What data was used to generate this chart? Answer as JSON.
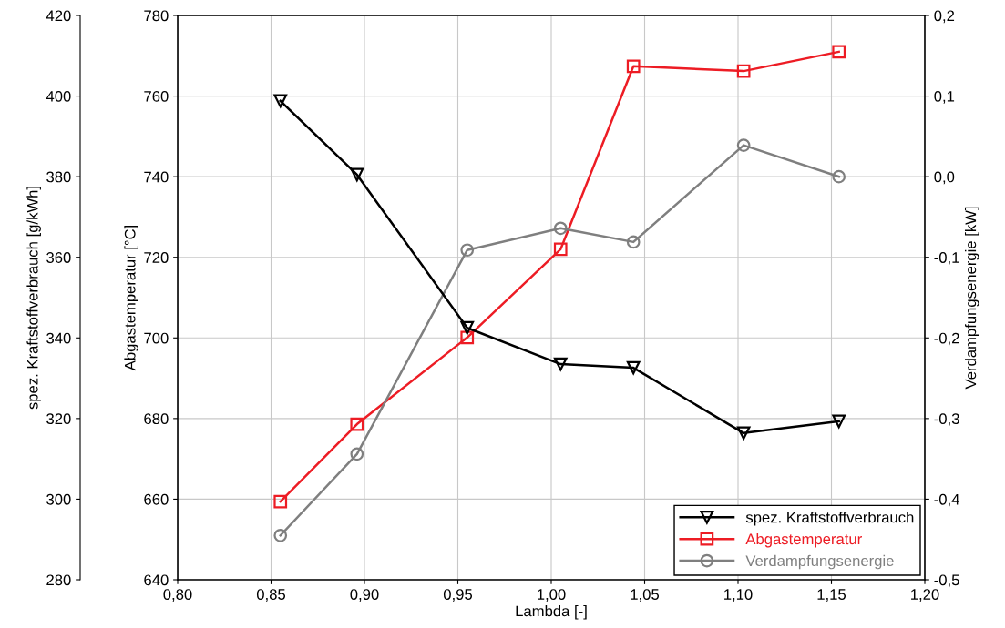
{
  "chart_data": {
    "type": "line",
    "xlabel": "Lambda [-]",
    "ylabel": "Abgastemperatur [°C]",
    "y2label": "Verdampfungsenergie [kW]",
    "y3label": "spez. Kraftstoffverbrauch [g/kWh]",
    "x": [
      0.855,
      0.896,
      0.955,
      1.005,
      1.044,
      1.103,
      1.154
    ],
    "series": [
      {
        "name": "spez. Kraftstoffverbrauch",
        "color": "#000000",
        "axis": "y3",
        "marker": "triangle",
        "values": [
          398.8,
          380.5,
          342.5,
          333.5,
          332.6,
          316.4,
          319.3
        ]
      },
      {
        "name": "Abgastemperatur",
        "color": "#ed1c24",
        "axis": "y",
        "marker": "square",
        "values": [
          659.4,
          678.6,
          700.1,
          722.0,
          767.4,
          766.2,
          771.0
        ]
      },
      {
        "name": "Verdampfungsenergie",
        "color": "#7f7f7f",
        "axis": "y2",
        "marker": "circle",
        "values": [
          -0.445,
          -0.344,
          -0.091,
          -0.064,
          -0.081,
          0.039,
          0.0
        ]
      }
    ],
    "xlim": [
      0.8,
      1.2
    ],
    "xticks": [
      {
        "value": 0.8,
        "label": "0,80"
      },
      {
        "value": 0.85,
        "label": "0,85"
      },
      {
        "value": 0.9,
        "label": "0,90"
      },
      {
        "value": 0.95,
        "label": "0,95"
      },
      {
        "value": 1.0,
        "label": "1,00"
      },
      {
        "value": 1.05,
        "label": "1,05"
      },
      {
        "value": 1.1,
        "label": "1,10"
      },
      {
        "value": 1.15,
        "label": "1,15"
      },
      {
        "value": 1.2,
        "label": "1,20"
      }
    ],
    "ylim": [
      640,
      780
    ],
    "yticks": [
      640,
      660,
      680,
      700,
      720,
      740,
      760,
      780
    ],
    "y2lim": [
      -0.5,
      0.2
    ],
    "y2ticks": [
      {
        "value": -0.5,
        "label": "-0,5"
      },
      {
        "value": -0.4,
        "label": "-0,4"
      },
      {
        "value": -0.3,
        "label": "-0,3"
      },
      {
        "value": -0.2,
        "label": "-0,2"
      },
      {
        "value": -0.1,
        "label": "-0,1"
      },
      {
        "value": 0.0,
        "label": "0,0"
      },
      {
        "value": 0.1,
        "label": "0,1"
      },
      {
        "value": 0.2,
        "label": "0,2"
      }
    ],
    "y3lim": [
      280,
      420
    ],
    "y3ticks": [
      280,
      300,
      320,
      340,
      360,
      380,
      400,
      420
    ],
    "grid": true,
    "legend": "bottom right",
    "line_style": "solid"
  }
}
